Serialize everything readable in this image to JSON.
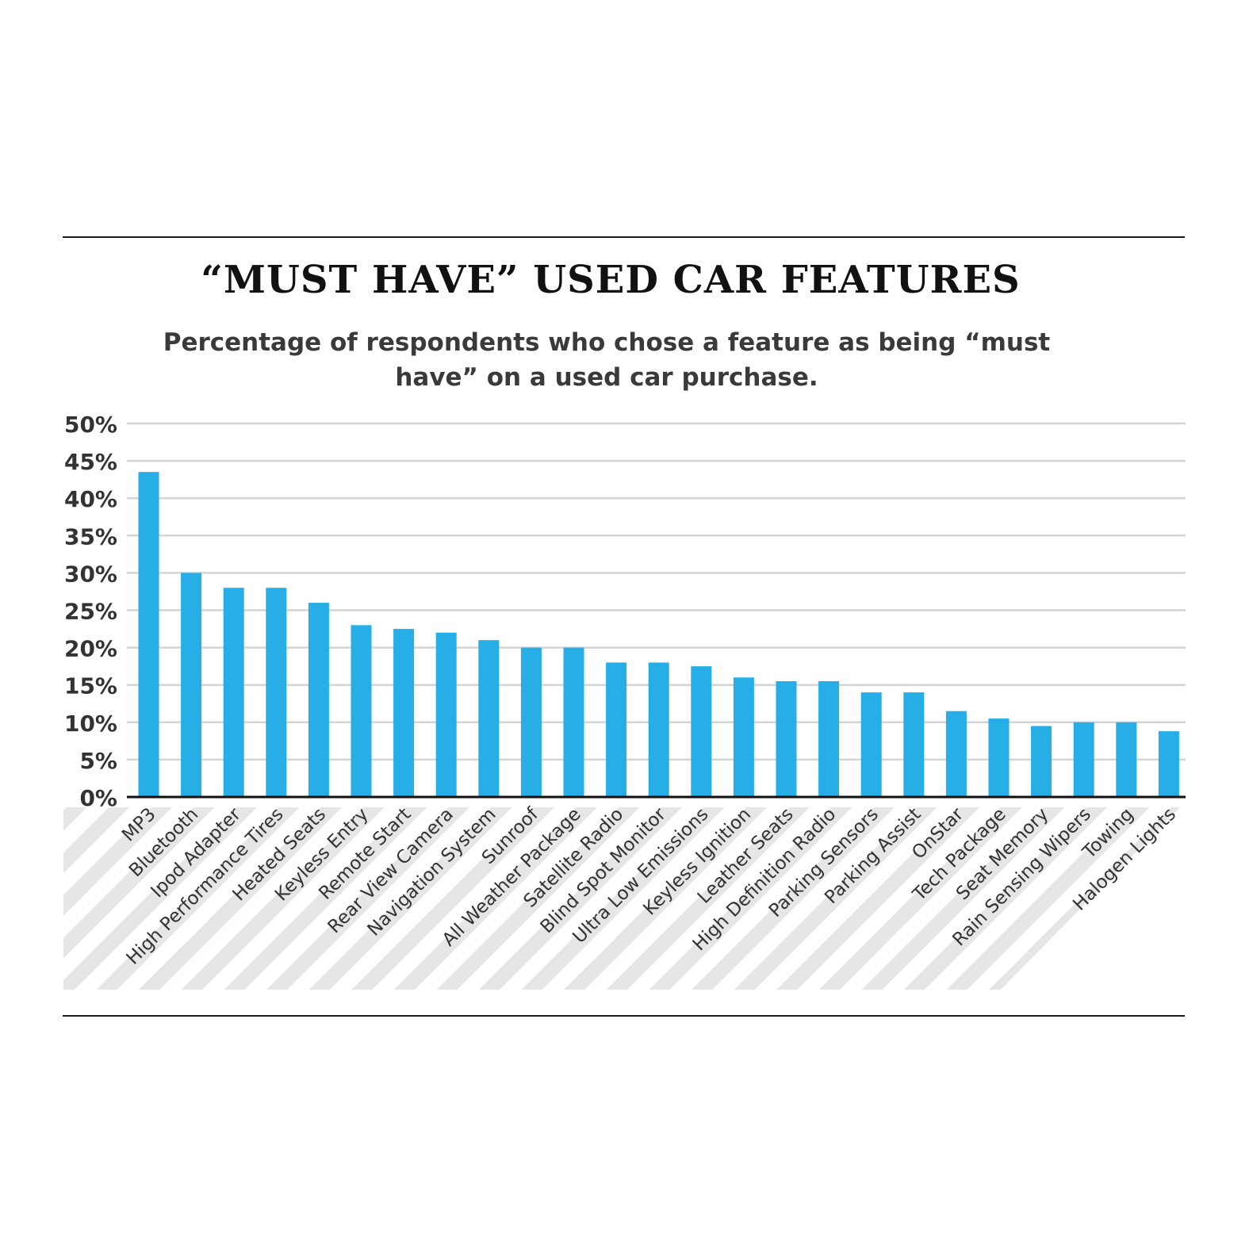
{
  "title": "“MUST HAVE” USED CAR FEATURES",
  "subtitle": "Percentage of respondents who chose a feature as being “must have” on a used car purchase.",
  "colors": {
    "bar": "#27aee7",
    "grid": "#d4d4d4",
    "axis": "#111111",
    "stripe": "#e6e6e6",
    "tick_text": "#333333",
    "label_text": "#333333"
  },
  "chart_data": {
    "type": "bar",
    "categories": [
      "MP3",
      "Bluetooth",
      "Ipod Adapter",
      "High Performance Tires",
      "Heated Seats",
      "Keyless Entry",
      "Remote Start",
      "Rear View Camera",
      "Navigation System",
      "Sunroof",
      "All Weather Package",
      "Satellite Radio",
      "Blind Spot Monitor",
      "Ultra Low Emissions",
      "Keyless Ignition",
      "Leather Seats",
      "High Definition Radio",
      "Parking Sensors",
      "Parking Assist",
      "OnStar",
      "Tech Package",
      "Seat Memory",
      "Rain Sensing Wipers",
      "Towing",
      "Halogen Lights"
    ],
    "values": [
      43.5,
      30,
      28,
      28,
      26,
      23,
      22.5,
      22,
      21,
      20,
      20,
      18,
      18,
      17.5,
      16,
      15.5,
      15.5,
      14,
      14,
      11.5,
      10.5,
      9.5,
      10,
      10,
      8.8
    ],
    "ylim": [
      0,
      50
    ],
    "yticks": [
      "0%",
      "5%",
      "10%",
      "15%",
      "20%",
      "25%",
      "30%",
      "35%",
      "40%",
      "45%",
      "50%"
    ],
    "ytick_values": [
      0,
      5,
      10,
      15,
      20,
      25,
      30,
      35,
      40,
      45,
      50
    ],
    "grid": true
  }
}
